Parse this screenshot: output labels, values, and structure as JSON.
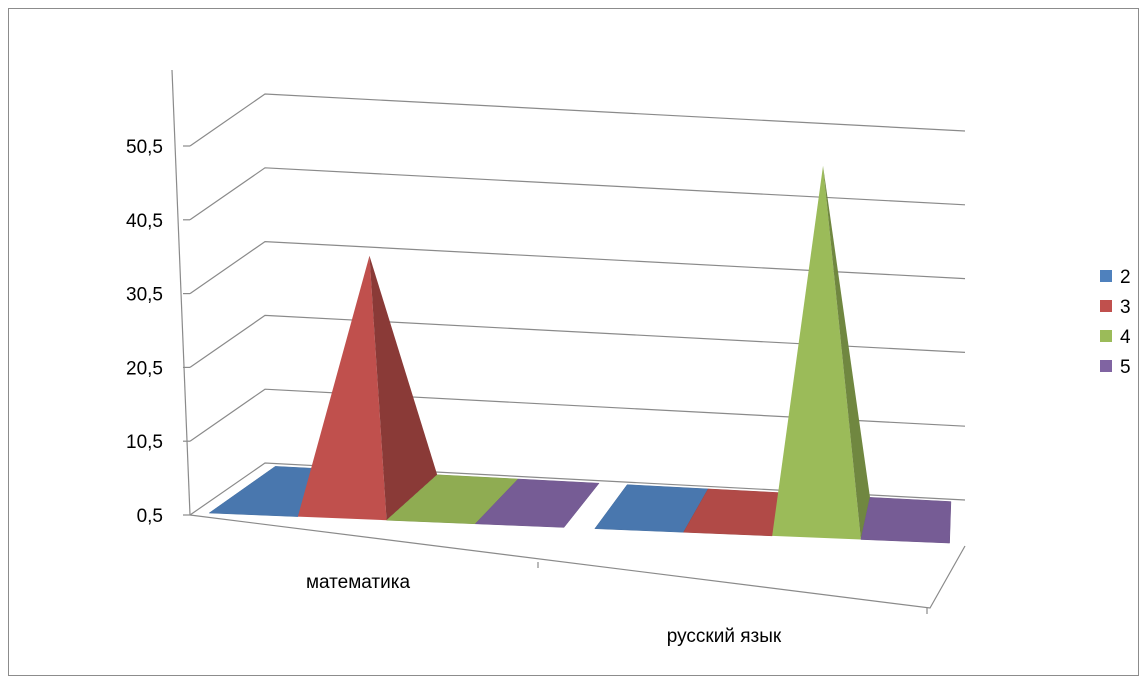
{
  "chart_data": {
    "type": "bar",
    "style": "3d-pyramid",
    "categories": [
      "математика",
      "русский язык"
    ],
    "series": [
      {
        "name": "2",
        "color": "#4f81bd",
        "values": [
          0.5,
          0.5
        ]
      },
      {
        "name": "3",
        "color": "#c0504d",
        "values": [
          33,
          0.5
        ]
      },
      {
        "name": "4",
        "color": "#9bbb59",
        "values": [
          0.5,
          48
        ]
      },
      {
        "name": "5",
        "color": "#8064a2",
        "values": [
          0.5,
          0.5
        ]
      }
    ],
    "y_ticks": [
      "0,5",
      "10,5",
      "20,5",
      "30,5",
      "40,5",
      "50,5"
    ],
    "ylim": [
      0.5,
      50.5
    ],
    "grid": true,
    "legend_position": "right"
  }
}
